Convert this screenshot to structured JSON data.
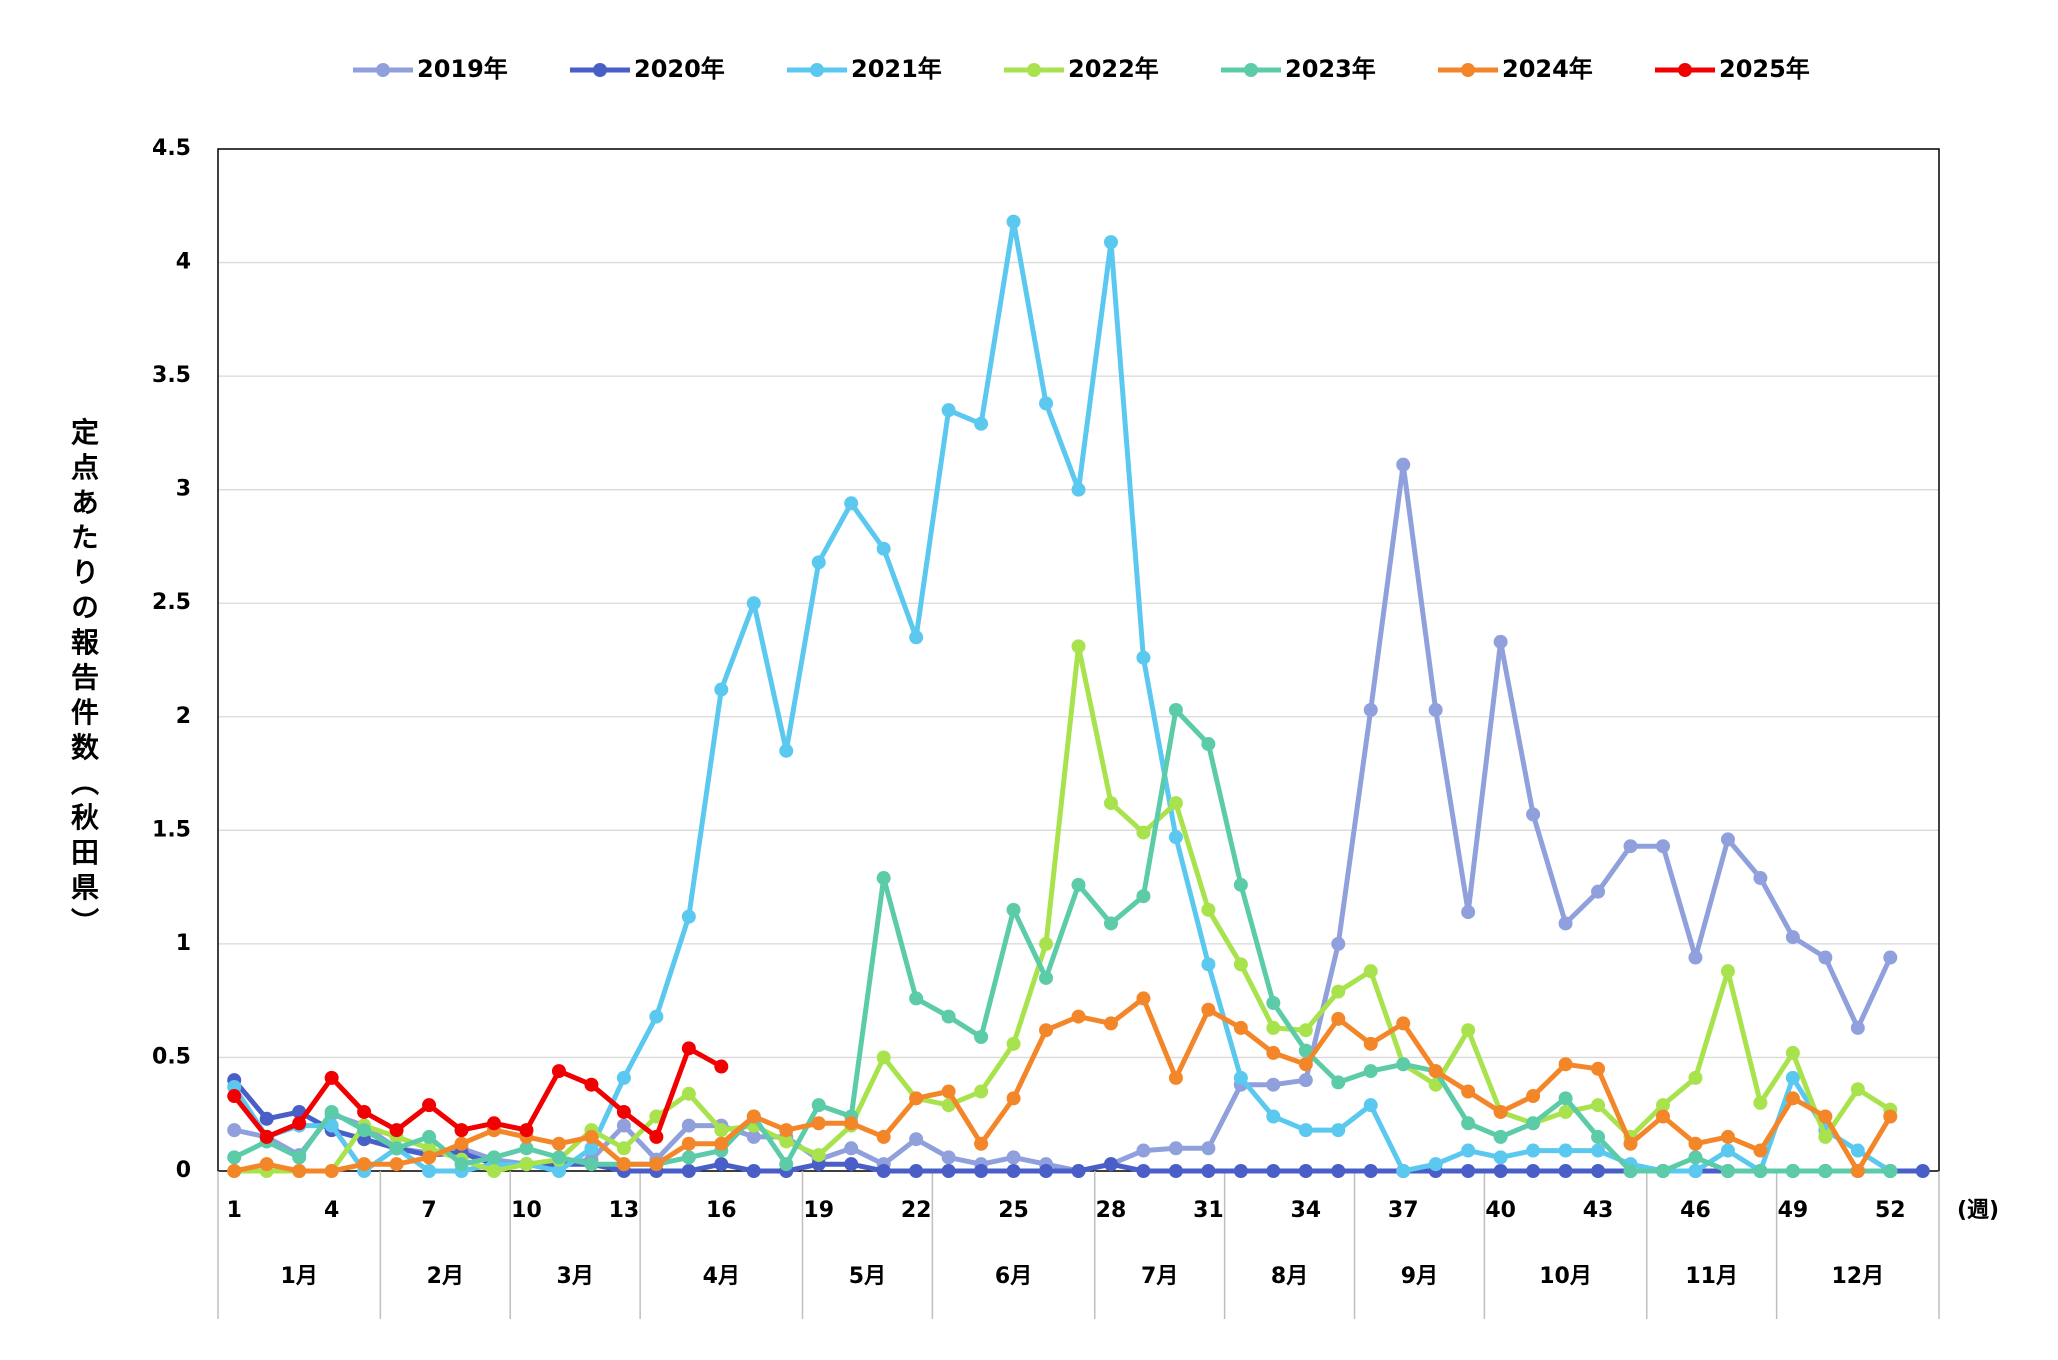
{
  "chart_data": {
    "type": "line",
    "y_axis_label": "定点あたりの報告件数（秋田県）",
    "x_unit_label": "(週)",
    "categories": [
      "1",
      null,
      null,
      "4",
      null,
      null,
      "7",
      null,
      null,
      "10",
      null,
      null,
      "13",
      null,
      null,
      "16",
      null,
      null,
      "19",
      null,
      null,
      "22",
      null,
      null,
      "25",
      null,
      null,
      "28",
      null,
      null,
      "31",
      null,
      null,
      "34",
      null,
      null,
      "37",
      null,
      null,
      "40",
      null,
      null,
      "43",
      null,
      null,
      "46",
      null,
      null,
      "49",
      null,
      null,
      "52",
      null
    ],
    "months": [
      "1月",
      "2月",
      "3月",
      "4月",
      "5月",
      "6月",
      "7月",
      "8月",
      "9月",
      "10月",
      "11月",
      "12月"
    ],
    "ylim": [
      0,
      4.5
    ],
    "yticks": [
      0,
      0.5,
      1,
      1.5,
      2,
      2.5,
      3,
      3.5,
      4,
      4.5
    ],
    "grid": true,
    "legend": "top",
    "series": [
      {
        "name": "2019年",
        "color": "#8fa0dc",
        "values": [
          0.18,
          0.15,
          0.07,
          0.25,
          0.2,
          0.1,
          0.08,
          0.1,
          0.05,
          0.03,
          0.03,
          0.05,
          0.2,
          0.05,
          0.2,
          0.2,
          0.15,
          0.15,
          0.05,
          0.1,
          0.03,
          0.14,
          0.06,
          0.03,
          0.06,
          0.03,
          0,
          0.03,
          0.09,
          0.1,
          0.1,
          0.38,
          0.38,
          0.4,
          1.0,
          2.03,
          3.11,
          2.03,
          1.14,
          2.33,
          1.57,
          1.09,
          1.23,
          1.43,
          1.43,
          0.94,
          1.46,
          1.29,
          1.03,
          0.94,
          0.63,
          0.94,
          null
        ]
      },
      {
        "name": "2020年",
        "color": "#4a5ec7",
        "values": [
          0.4,
          0.23,
          0.26,
          0.18,
          0.14,
          0.1,
          0.07,
          0.08,
          0.03,
          0.03,
          0.03,
          0.03,
          0,
          0,
          0,
          0.03,
          0,
          0,
          0.03,
          0.03,
          0,
          0,
          0,
          0,
          0,
          0,
          0,
          0.03,
          0,
          0,
          0,
          0,
          0,
          0,
          0,
          0,
          0,
          0,
          0,
          0,
          0,
          0,
          0,
          0,
          0,
          0,
          0,
          0,
          0,
          0,
          0,
          0,
          0
        ]
      },
      {
        "name": "2021年",
        "color": "#5bc8f0",
        "values": [
          0.37,
          0.15,
          0.2,
          0.2,
          0,
          0.1,
          0,
          0,
          0.03,
          0.03,
          0,
          0.1,
          0.41,
          0.68,
          1.12,
          2.12,
          2.5,
          1.85,
          2.68,
          2.94,
          2.74,
          2.35,
          3.35,
          3.29,
          4.18,
          3.38,
          3.0,
          4.09,
          2.26,
          1.47,
          0.91,
          0.41,
          0.24,
          0.18,
          0.18,
          0.29,
          0,
          0.03,
          0.09,
          0.06,
          0.09,
          0.09,
          0.09,
          0.03,
          0,
          0,
          0.09,
          0,
          0.41,
          0.18,
          0.09,
          0,
          null
        ]
      },
      {
        "name": "2022年",
        "color": "#a8e34e",
        "values": [
          0,
          0,
          0,
          0,
          0.2,
          0.15,
          0.1,
          0.05,
          0,
          0.03,
          0.05,
          0.18,
          0.1,
          0.24,
          0.34,
          0.18,
          0.2,
          0.13,
          0.07,
          0.2,
          0.5,
          0.32,
          0.29,
          0.35,
          0.56,
          1.0,
          2.31,
          1.62,
          1.49,
          1.62,
          1.15,
          0.91,
          0.63,
          0.62,
          0.79,
          0.88,
          0.47,
          0.38,
          0.62,
          0.26,
          0.21,
          0.26,
          0.29,
          0.15,
          0.29,
          0.41,
          0.88,
          0.3,
          0.52,
          0.15,
          0.36,
          0.27,
          null
        ]
      },
      {
        "name": "2023年",
        "color": "#5ccba8",
        "values": [
          0.06,
          0.13,
          0.06,
          0.26,
          0.18,
          0.1,
          0.15,
          0.03,
          0.06,
          0.1,
          0.06,
          0.03,
          0.03,
          0.03,
          0.06,
          0.09,
          0.24,
          0.03,
          0.29,
          0.24,
          1.29,
          0.76,
          0.68,
          0.59,
          1.15,
          0.85,
          1.26,
          1.09,
          1.21,
          2.03,
          1.88,
          1.26,
          0.74,
          0.53,
          0.39,
          0.44,
          0.47,
          0.44,
          0.21,
          0.15,
          0.21,
          0.32,
          0.15,
          0,
          0,
          0.06,
          0,
          0,
          0,
          0,
          0,
          0,
          null
        ]
      },
      {
        "name": "2024年",
        "color": "#f4862a",
        "values": [
          0,
          0.03,
          0,
          0,
          0.03,
          0.03,
          0.06,
          0.12,
          0.18,
          0.15,
          0.12,
          0.15,
          0.03,
          0.03,
          0.12,
          0.12,
          0.24,
          0.18,
          0.21,
          0.21,
          0.15,
          0.32,
          0.35,
          0.12,
          0.32,
          0.62,
          0.68,
          0.65,
          0.76,
          0.41,
          0.71,
          0.63,
          0.52,
          0.47,
          0.67,
          0.56,
          0.65,
          0.44,
          0.35,
          0.26,
          0.33,
          0.47,
          0.45,
          0.12,
          0.24,
          0.12,
          0.15,
          0.09,
          0.32,
          0.24,
          0,
          0.24,
          null
        ]
      },
      {
        "name": "2025年",
        "color": "#f00000",
        "values": [
          0.33,
          0.15,
          0.21,
          0.41,
          0.26,
          0.18,
          0.29,
          0.18,
          0.21,
          0.18,
          0.44,
          0.38,
          0.26,
          0.15,
          0.54,
          0.46,
          null,
          null,
          null,
          null,
          null,
          null,
          null,
          null,
          null,
          null,
          null,
          null,
          null,
          null,
          null,
          null,
          null,
          null,
          null,
          null,
          null,
          null,
          null,
          null,
          null,
          null,
          null,
          null,
          null,
          null,
          null,
          null,
          null,
          null,
          null,
          null,
          null
        ]
      }
    ]
  }
}
